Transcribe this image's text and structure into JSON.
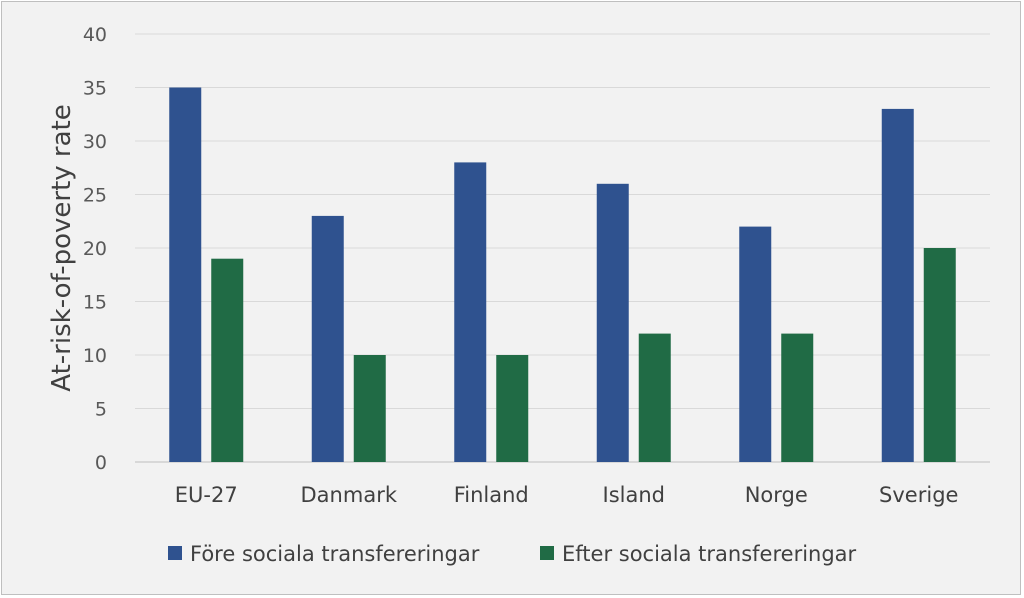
{
  "chart_data": {
    "type": "bar",
    "categories": [
      "EU-27",
      "Danmark",
      "Finland",
      "Island",
      "Norge",
      "Sverige"
    ],
    "series": [
      {
        "name": "Före sociala transfereringar",
        "color": "#2f528f",
        "values": [
          35,
          23,
          28,
          26,
          22,
          33
        ]
      },
      {
        "name": "Efter sociala transfereringar",
        "color": "#206b45",
        "values": [
          19,
          10,
          10,
          12,
          12,
          20
        ]
      }
    ],
    "ylabel": "At-risk-of-poverty rate",
    "ylim": [
      0,
      40
    ],
    "yticks": [
      0,
      5,
      10,
      15,
      20,
      25,
      30,
      35,
      40
    ],
    "grid": true,
    "legend": "bottom"
  }
}
